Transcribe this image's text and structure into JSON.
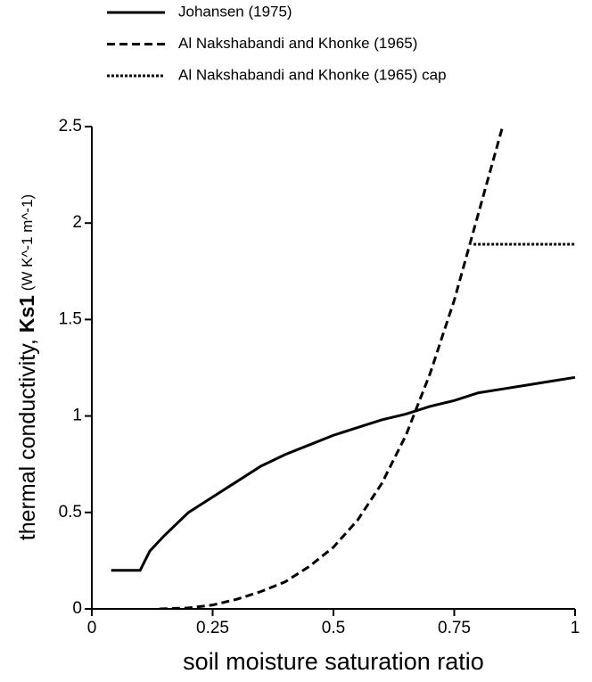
{
  "chart_data": {
    "type": "line",
    "xlabel": "soil moisture saturation ratio",
    "ylabel": [
      "thermal conductivity, ",
      "Ks1",
      " (W K^-1 m^-1)"
    ],
    "xlim": [
      0,
      1
    ],
    "ylim": [
      0,
      2.5
    ],
    "xticks": [
      0,
      0.25,
      0.5,
      0.75,
      1
    ],
    "yticks": [
      0,
      0.5,
      1,
      1.5,
      2,
      2.5
    ],
    "series": [
      {
        "name": "Johansen (1975)",
        "color": "#000000",
        "linestyle": "solid",
        "x": [
          0.04,
          0.1,
          0.12,
          0.15,
          0.2,
          0.25,
          0.3,
          0.35,
          0.4,
          0.45,
          0.5,
          0.55,
          0.6,
          0.65,
          0.7,
          0.75,
          0.8,
          0.85,
          0.9,
          0.95,
          1.0
        ],
        "values": [
          0.2,
          0.2,
          0.3,
          0.38,
          0.5,
          0.58,
          0.66,
          0.74,
          0.8,
          0.85,
          0.9,
          0.94,
          0.98,
          1.01,
          1.05,
          1.08,
          1.12,
          1.14,
          1.16,
          1.18,
          1.2
        ]
      },
      {
        "name": "Al Nakshabandi and Khonke (1965)",
        "color": "#000000",
        "linestyle": "dashed",
        "x": [
          0.14,
          0.2,
          0.25,
          0.3,
          0.35,
          0.4,
          0.45,
          0.5,
          0.55,
          0.6,
          0.65,
          0.7,
          0.75,
          0.8,
          0.85
        ],
        "values": [
          0,
          0.005,
          0.02,
          0.05,
          0.09,
          0.14,
          0.22,
          0.32,
          0.46,
          0.65,
          0.9,
          1.22,
          1.6,
          2.05,
          2.5
        ]
      },
      {
        "name": "Al Nakshabandi and Khonke (1965) cap",
        "color": "#000000",
        "linestyle": "dotted",
        "x": [
          0.79,
          1.0
        ],
        "values": [
          1.89,
          1.89
        ]
      }
    ]
  }
}
